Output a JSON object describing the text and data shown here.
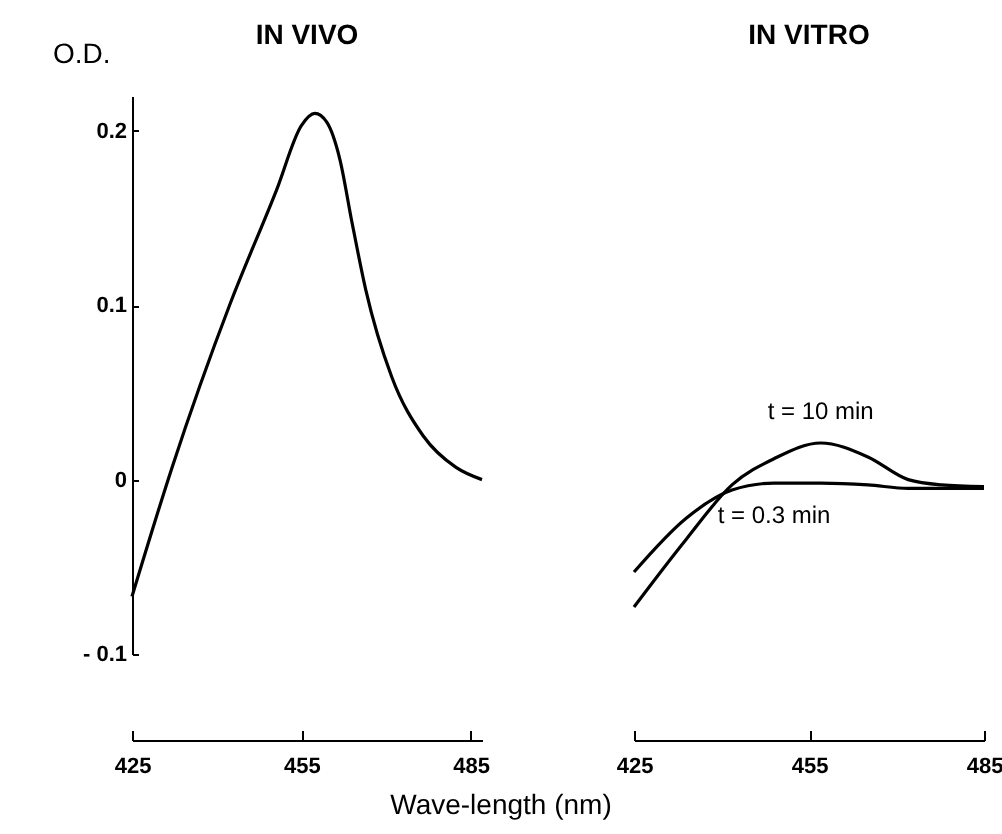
{
  "chart_data": [
    {
      "type": "line",
      "title": "IN VIVO",
      "ylabel": "O.D.",
      "xlabel": "Wave-length (nm)",
      "x": [
        425,
        432.1,
        442.4,
        450.6,
        455,
        457.4,
        459.5,
        461.8,
        464,
        466.4,
        471,
        476.6,
        482.4,
        487
      ],
      "values": [
        -0.067,
        0.007,
        0.101,
        0.166,
        0.203,
        0.21,
        0.205,
        0.184,
        0.147,
        0.109,
        0.059,
        0.025,
        0.007,
        0
      ],
      "color": "#000000",
      "xlim": [
        425,
        487
      ],
      "xticks": [
        425,
        455,
        485
      ],
      "ylim": [
        -0.1,
        0.22
      ],
      "yticks": [
        {
          "value": -0.1,
          "label": "- 0.1"
        },
        0,
        0.1,
        0.2
      ],
      "grid": false
    },
    {
      "type": "line",
      "title": "IN VITRO",
      "x": [
        425,
        434,
        441.8,
        449,
        457,
        465.1,
        472,
        477.7,
        485
      ],
      "series": [
        {
          "name": "t = 10 min",
          "color": "#000000",
          "values": [
            -0.073,
            -0.034,
            -0.003,
            0.012,
            0.021,
            0.013,
            0,
            -0.003,
            -0.004
          ]
        },
        {
          "name": "t = 0.3 min",
          "color": "#000000",
          "values": [
            -0.053,
            -0.022,
            -0.006,
            -0.002,
            -0.002,
            -0.003,
            -0.005,
            -0.005,
            -0.005
          ]
        }
      ],
      "xlim": [
        425,
        485
      ],
      "xticks": [
        425,
        455,
        485
      ],
      "ylim": [
        -0.1,
        0.2
      ],
      "yticks": [
        -0.1,
        0,
        0.1,
        0.2
      ],
      "tick_labels": "x",
      "grid": false
    }
  ]
}
